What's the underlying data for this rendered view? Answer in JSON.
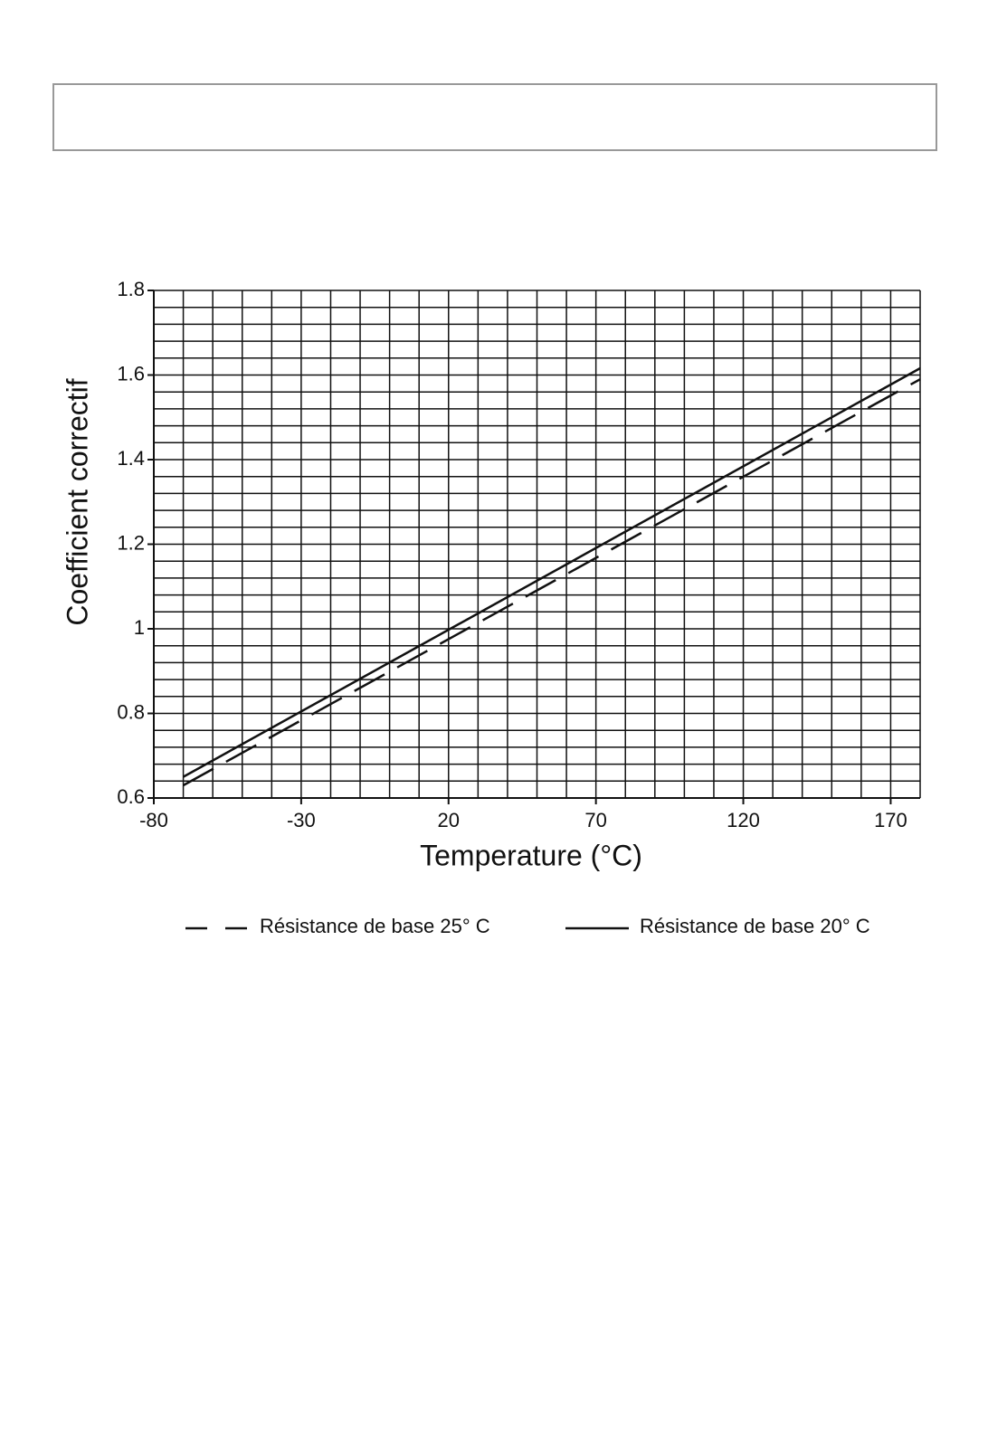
{
  "chart_data": {
    "type": "line",
    "xlabel": "Temperature (°C)",
    "ylabel": "Coefficient correctif",
    "x": [
      -70,
      180
    ],
    "series": [
      {
        "name": "Résistance de base 25° C",
        "color": "#111111",
        "dash": true,
        "values": [
          0.63,
          1.59
        ]
      },
      {
        "name": "Résistance de base 20° C",
        "color": "#111111",
        "dash": false,
        "values": [
          0.65,
          1.616
        ]
      }
    ],
    "xlim": [
      -80,
      180
    ],
    "ylim": [
      0.6,
      1.8
    ],
    "xticks": [
      -80,
      -30,
      20,
      70,
      120,
      170
    ],
    "yticks": [
      0.6,
      0.8,
      1,
      1.2,
      1.4,
      1.6,
      1.8
    ],
    "xgrid": [
      -70,
      -60,
      -50,
      -40,
      -30,
      -20,
      -10,
      0,
      10,
      20,
      30,
      40,
      50,
      60,
      70,
      80,
      90,
      100,
      110,
      120,
      130,
      140,
      150,
      160,
      170,
      180
    ],
    "ygrid": [
      0.64,
      0.68,
      0.72,
      0.76,
      0.8,
      0.84,
      0.88,
      0.92,
      0.96,
      1,
      1.04,
      1.08,
      1.12,
      1.16,
      1.2,
      1.24,
      1.28,
      1.32,
      1.36,
      1.4,
      1.44,
      1.48,
      1.52,
      1.56,
      1.6,
      1.64,
      1.68,
      1.72,
      1.76,
      1.8
    ],
    "grid": true
  }
}
